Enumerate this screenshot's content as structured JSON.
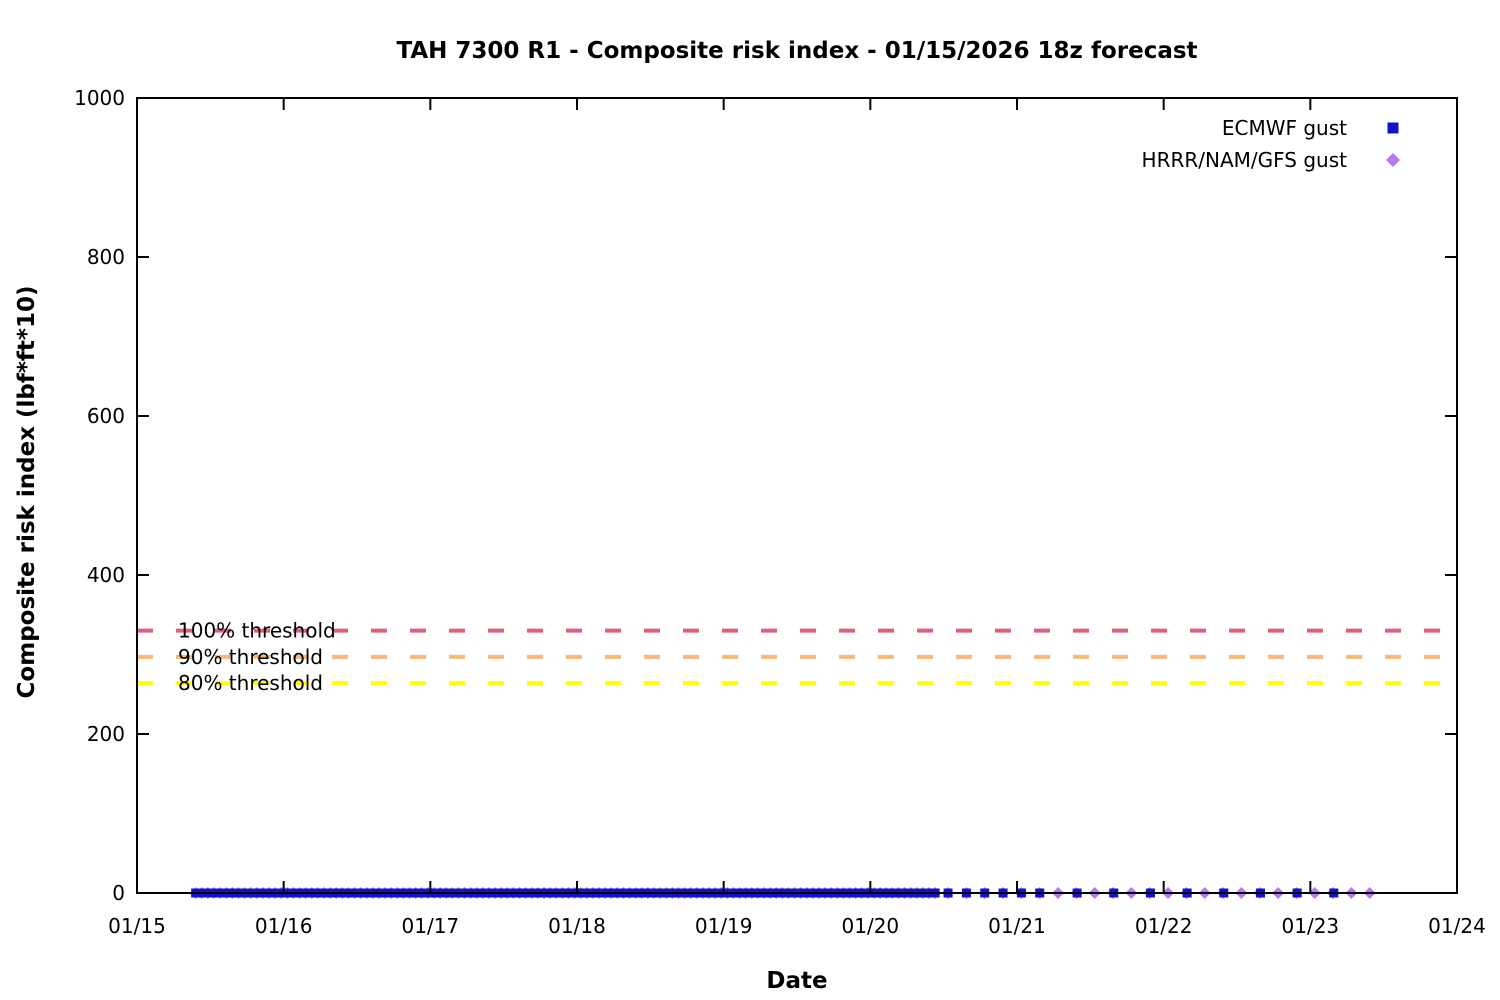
{
  "chart_data": {
    "type": "scatter",
    "title": "TAH 7300 R1 - Composite risk index - 01/15/2026 18z forecast",
    "xlabel": "Date",
    "ylabel": "Composite risk index (lbf*ft*10)",
    "x_tick_labels": [
      "01/15",
      "01/16",
      "01/17",
      "01/18",
      "01/19",
      "01/20",
      "01/21",
      "01/22",
      "01/23",
      "01/24"
    ],
    "x_range_days": [
      0,
      9
    ],
    "y_ticks": [
      0,
      200,
      400,
      600,
      800,
      1000
    ],
    "ylim": [
      0,
      1000
    ],
    "grid": false,
    "legend_position": "top-right-inside",
    "background_color": "#ffffff",
    "axis_color": "#000000",
    "thresholds": [
      {
        "label": "100% threshold",
        "value": 330,
        "color": "#e0607a"
      },
      {
        "label": "90% threshold",
        "value": 297,
        "color": "#f8b878"
      },
      {
        "label": "80% threshold",
        "value": 264,
        "color": "#ffff00"
      }
    ],
    "series": [
      {
        "name": "ECMWF gust",
        "marker": "square",
        "color": "#1212cd",
        "value": 0,
        "segments": [
          {
            "start_day": 0.4,
            "end_day": 5.45,
            "step_hours": 1
          },
          {
            "start_day": 5.53,
            "end_day": 6.16,
            "step_hours": 3
          },
          {
            "start_day": 6.41,
            "end_day": 8.16,
            "step_hours": 6
          }
        ]
      },
      {
        "name": "HRRR/NAM/GFS gust",
        "marker": "diamond",
        "color": "#b878f0",
        "value": 0,
        "segments": [
          {
            "start_day": 0.4,
            "end_day": 5.45,
            "step_hours": 1
          },
          {
            "start_day": 5.53,
            "end_day": 8.42,
            "step_hours": 3
          }
        ]
      }
    ]
  }
}
